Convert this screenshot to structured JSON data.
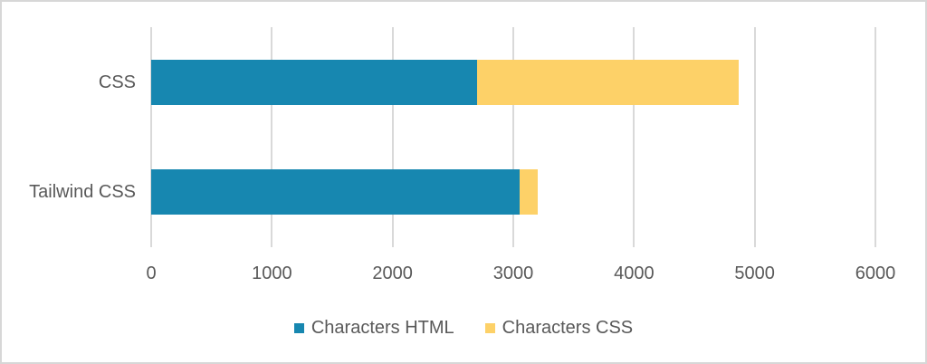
{
  "chart_data": {
    "type": "bar",
    "orientation": "horizontal",
    "stacked": true,
    "title": "",
    "xlabel": "",
    "ylabel": "",
    "categories": [
      "CSS",
      "Tailwind CSS"
    ],
    "series": [
      {
        "name": "Characters HTML",
        "color": "#1787b0",
        "values": [
          2700,
          3050
        ]
      },
      {
        "name": "Characters CSS",
        "color": "#fdd168",
        "values": [
          2170,
          150
        ]
      }
    ],
    "xlim": [
      0,
      6000
    ],
    "xticks": [
      0,
      1000,
      2000,
      3000,
      4000,
      5000,
      6000
    ],
    "grid": "vertical-only",
    "legend_position": "bottom"
  },
  "colors": {
    "text": "#595959",
    "gridline": "#d9d9d9",
    "frame_border": "#d7d7d7",
    "background": "#ffffff"
  }
}
